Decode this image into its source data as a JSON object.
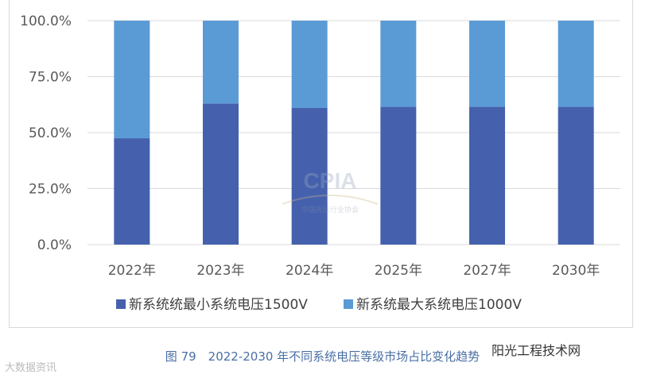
{
  "chart_data": {
    "type": "bar",
    "stacked": true,
    "title": "",
    "categories": [
      "2022年",
      "2023年",
      "2024年",
      "2025年",
      "2027年",
      "2030年"
    ],
    "series": [
      {
        "name": "新系统统最小系统电压1500V",
        "color": "#4561ad",
        "values": [
          47.5,
          63.0,
          61.0,
          61.5,
          61.5,
          61.5
        ]
      },
      {
        "name": "新系统最大系统电压1000V",
        "color": "#5b9bd5",
        "values": [
          52.5,
          37.0,
          39.0,
          38.5,
          38.5,
          38.5
        ]
      }
    ],
    "yticks": [
      "0.0%",
      "25.0%",
      "50.0%",
      "75.0%",
      "100.0%"
    ],
    "ylim": [
      0,
      100
    ],
    "grid": true,
    "legend_position": "bottom"
  },
  "caption": "图 79　2022-2030 年不同系统电压等级市场占比变化趋势",
  "watermarks": {
    "logo": "CPIA",
    "logo_sub": "中国光伏行业协会",
    "bottom_right": "阳光工程技术网",
    "bottom_left": "大数据资讯"
  }
}
